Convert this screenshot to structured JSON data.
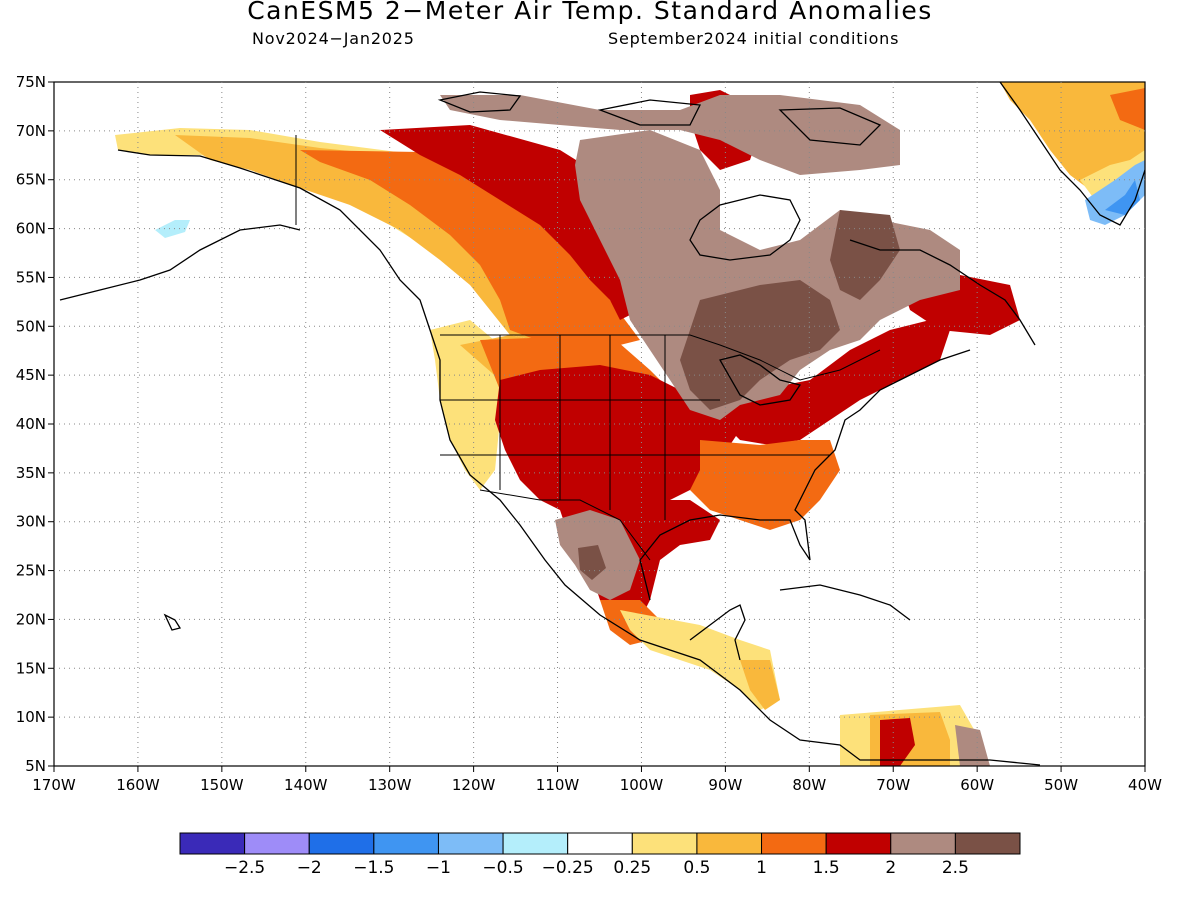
{
  "title": "CanESM5 2−Meter Air Temp. Standard Anomalies",
  "subtitle_left": "Nov2024−Jan2025",
  "subtitle_right": "September2024 initial conditions",
  "map": {
    "lon_range": [
      -170,
      -40
    ],
    "lat_range": [
      5,
      75
    ],
    "projection": "latitude-longitude",
    "grid": "dotted",
    "lon_ticks": [
      "170W",
      "160W",
      "150W",
      "140W",
      "130W",
      "120W",
      "110W",
      "100W",
      "90W",
      "80W",
      "70W",
      "60W",
      "50W",
      "40W"
    ],
    "lat_ticks": [
      "5N",
      "10N",
      "15N",
      "20N",
      "25N",
      "30N",
      "35N",
      "40N",
      "45N",
      "50N",
      "55N",
      "60N",
      "65N",
      "70N",
      "75N"
    ]
  },
  "colorbar": {
    "colors": [
      "#3a2ab8",
      "#9e8cf8",
      "#1f6fe8",
      "#3f95f2",
      "#7dbcf7",
      "#b4eefb",
      "#ffffff",
      "#fde17a",
      "#f9b83c",
      "#f36a12",
      "#c00000",
      "#ae8a80",
      "#7a5146"
    ],
    "labels": [
      "−2.5",
      "−2",
      "−1.5",
      "−1",
      "−0.5",
      "−0.25",
      "0.25",
      "0.5",
      "1",
      "1.5",
      "2",
      "2.5"
    ]
  }
}
